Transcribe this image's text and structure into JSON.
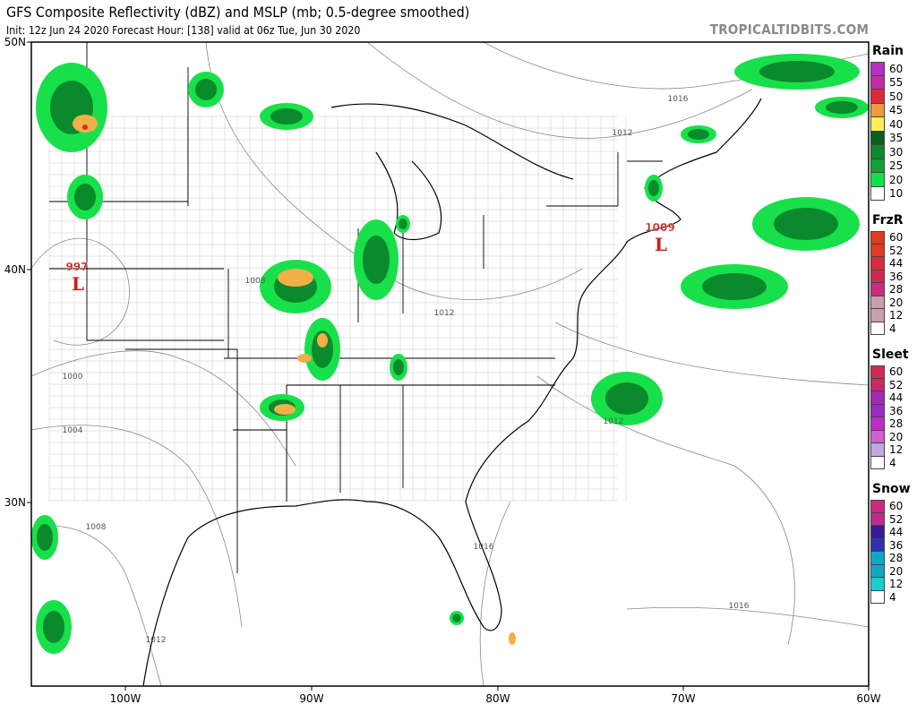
{
  "header": {
    "title": "GFS Composite Reflectivity (dBZ) and MSLP (mb; 0.5-degree smoothed)",
    "subtitle": "Init: 12z Jun 24 2020   Forecast Hour: [138]   valid at 06z Tue, Jun 30 2020",
    "brand": "TROPICALTIDBITS.COM"
  },
  "axes": {
    "lon_labels": [
      "100W",
      "90W",
      "80W",
      "70W",
      "60W"
    ],
    "lat_labels": [
      "50N",
      "40N",
      "30N"
    ]
  },
  "pressure_centers": [
    {
      "value": "997",
      "symbol": "L",
      "color": "#cc1f1f"
    },
    {
      "value": "1009",
      "symbol": "L",
      "color": "#cc1f1f"
    }
  ],
  "isobar_labels": [
    "1016",
    "1012",
    "1012",
    "1008",
    "1000",
    "1004",
    "1008",
    "1012",
    "1016",
    "1016",
    "1012"
  ],
  "legend": [
    {
      "title": "Rain",
      "ticks": [
        "60",
        "55",
        "50",
        "45",
        "40",
        "35",
        "30",
        "25",
        "20",
        "10"
      ],
      "colors": [
        "#b52fc0",
        "#c22aa8",
        "#e0243a",
        "#e0283a",
        "#f09a40",
        "#f2b048",
        "#ffee55",
        "#0b5e1f",
        "#0a6e23",
        "#0a8a2c",
        "#0ca336",
        "#10c23f",
        "#15e04a",
        "#ffffff"
      ]
    },
    {
      "title": "FrzR",
      "ticks": [
        "60",
        "52",
        "44",
        "36",
        "28",
        "20",
        "12",
        "4"
      ],
      "colors": [
        "#e03a22",
        "#e03a22",
        "#e02a2e",
        "#d82a40",
        "#cc2a55",
        "#c42a68",
        "#ca2a80",
        "#c9a0b0",
        "#c9a0b0",
        "#c9a0b0",
        "#ffffff"
      ]
    },
    {
      "title": "Sleet",
      "ticks": [
        "60",
        "52",
        "44",
        "36",
        "28",
        "20",
        "12",
        "4"
      ],
      "colors": [
        "#d22a55",
        "#c82a65",
        "#c02a80",
        "#a02ab0",
        "#9a2ac0",
        "#b02ac8",
        "#c22ac8",
        "#d060d0",
        "#c0a8e0",
        "#c0a8e0",
        "#ffffff"
      ]
    },
    {
      "title": "Snow",
      "ticks": [
        "60",
        "52",
        "44",
        "36",
        "28",
        "20",
        "12",
        "4"
      ],
      "colors": [
        "#cc2a80",
        "#c02a90",
        "#4a20a0",
        "#3a1a98",
        "#3030b0",
        "#10a8c8",
        "#10a8c8",
        "#10a8c8",
        "#10c8c8",
        "#10d0d0",
        "#ffffff"
      ]
    }
  ]
}
